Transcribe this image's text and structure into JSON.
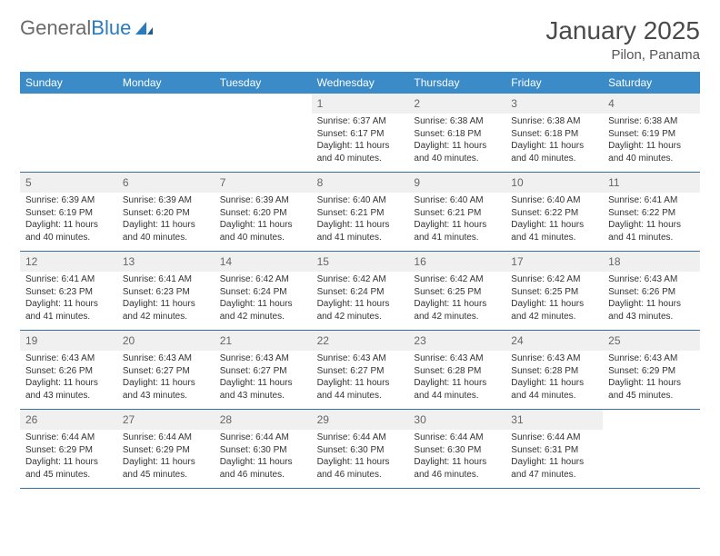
{
  "logo": {
    "text1": "General",
    "text2": "Blue"
  },
  "title": "January 2025",
  "location": "Pilon, Panama",
  "colors": {
    "header_bg": "#3b8bc9",
    "header_text": "#ffffff",
    "week_border": "#3b6fa0",
    "daynum_bg": "#f0f0f0",
    "daynum_text": "#666666",
    "body_text": "#333333",
    "title_text": "#4a4a4a",
    "logo_gray": "#6a6a6a",
    "logo_blue": "#2b7bbf"
  },
  "weekdays": [
    "Sunday",
    "Monday",
    "Tuesday",
    "Wednesday",
    "Thursday",
    "Friday",
    "Saturday"
  ],
  "weeks": [
    [
      {
        "n": "",
        "sr": "",
        "ss": "",
        "dl": ""
      },
      {
        "n": "",
        "sr": "",
        "ss": "",
        "dl": ""
      },
      {
        "n": "",
        "sr": "",
        "ss": "",
        "dl": ""
      },
      {
        "n": "1",
        "sr": "6:37 AM",
        "ss": "6:17 PM",
        "dl": "11 hours and 40 minutes."
      },
      {
        "n": "2",
        "sr": "6:38 AM",
        "ss": "6:18 PM",
        "dl": "11 hours and 40 minutes."
      },
      {
        "n": "3",
        "sr": "6:38 AM",
        "ss": "6:18 PM",
        "dl": "11 hours and 40 minutes."
      },
      {
        "n": "4",
        "sr": "6:38 AM",
        "ss": "6:19 PM",
        "dl": "11 hours and 40 minutes."
      }
    ],
    [
      {
        "n": "5",
        "sr": "6:39 AM",
        "ss": "6:19 PM",
        "dl": "11 hours and 40 minutes."
      },
      {
        "n": "6",
        "sr": "6:39 AM",
        "ss": "6:20 PM",
        "dl": "11 hours and 40 minutes."
      },
      {
        "n": "7",
        "sr": "6:39 AM",
        "ss": "6:20 PM",
        "dl": "11 hours and 40 minutes."
      },
      {
        "n": "8",
        "sr": "6:40 AM",
        "ss": "6:21 PM",
        "dl": "11 hours and 41 minutes."
      },
      {
        "n": "9",
        "sr": "6:40 AM",
        "ss": "6:21 PM",
        "dl": "11 hours and 41 minutes."
      },
      {
        "n": "10",
        "sr": "6:40 AM",
        "ss": "6:22 PM",
        "dl": "11 hours and 41 minutes."
      },
      {
        "n": "11",
        "sr": "6:41 AM",
        "ss": "6:22 PM",
        "dl": "11 hours and 41 minutes."
      }
    ],
    [
      {
        "n": "12",
        "sr": "6:41 AM",
        "ss": "6:23 PM",
        "dl": "11 hours and 41 minutes."
      },
      {
        "n": "13",
        "sr": "6:41 AM",
        "ss": "6:23 PM",
        "dl": "11 hours and 42 minutes."
      },
      {
        "n": "14",
        "sr": "6:42 AM",
        "ss": "6:24 PM",
        "dl": "11 hours and 42 minutes."
      },
      {
        "n": "15",
        "sr": "6:42 AM",
        "ss": "6:24 PM",
        "dl": "11 hours and 42 minutes."
      },
      {
        "n": "16",
        "sr": "6:42 AM",
        "ss": "6:25 PM",
        "dl": "11 hours and 42 minutes."
      },
      {
        "n": "17",
        "sr": "6:42 AM",
        "ss": "6:25 PM",
        "dl": "11 hours and 42 minutes."
      },
      {
        "n": "18",
        "sr": "6:43 AM",
        "ss": "6:26 PM",
        "dl": "11 hours and 43 minutes."
      }
    ],
    [
      {
        "n": "19",
        "sr": "6:43 AM",
        "ss": "6:26 PM",
        "dl": "11 hours and 43 minutes."
      },
      {
        "n": "20",
        "sr": "6:43 AM",
        "ss": "6:27 PM",
        "dl": "11 hours and 43 minutes."
      },
      {
        "n": "21",
        "sr": "6:43 AM",
        "ss": "6:27 PM",
        "dl": "11 hours and 43 minutes."
      },
      {
        "n": "22",
        "sr": "6:43 AM",
        "ss": "6:27 PM",
        "dl": "11 hours and 44 minutes."
      },
      {
        "n": "23",
        "sr": "6:43 AM",
        "ss": "6:28 PM",
        "dl": "11 hours and 44 minutes."
      },
      {
        "n": "24",
        "sr": "6:43 AM",
        "ss": "6:28 PM",
        "dl": "11 hours and 44 minutes."
      },
      {
        "n": "25",
        "sr": "6:43 AM",
        "ss": "6:29 PM",
        "dl": "11 hours and 45 minutes."
      }
    ],
    [
      {
        "n": "26",
        "sr": "6:44 AM",
        "ss": "6:29 PM",
        "dl": "11 hours and 45 minutes."
      },
      {
        "n": "27",
        "sr": "6:44 AM",
        "ss": "6:29 PM",
        "dl": "11 hours and 45 minutes."
      },
      {
        "n": "28",
        "sr": "6:44 AM",
        "ss": "6:30 PM",
        "dl": "11 hours and 46 minutes."
      },
      {
        "n": "29",
        "sr": "6:44 AM",
        "ss": "6:30 PM",
        "dl": "11 hours and 46 minutes."
      },
      {
        "n": "30",
        "sr": "6:44 AM",
        "ss": "6:30 PM",
        "dl": "11 hours and 46 minutes."
      },
      {
        "n": "31",
        "sr": "6:44 AM",
        "ss": "6:31 PM",
        "dl": "11 hours and 47 minutes."
      },
      {
        "n": "",
        "sr": "",
        "ss": "",
        "dl": ""
      }
    ]
  ],
  "labels": {
    "sunrise": "Sunrise: ",
    "sunset": "Sunset: ",
    "daylight": "Daylight: "
  }
}
